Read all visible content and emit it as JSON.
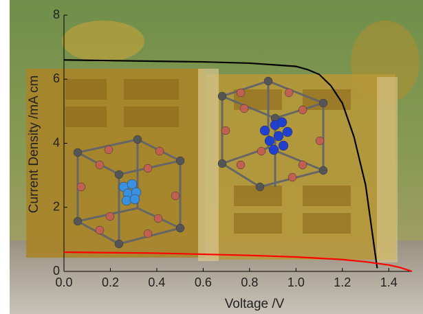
{
  "chart_data": {
    "type": "line",
    "x_label": "Voltage /V",
    "y_label": "Current Density /mA cm",
    "xlim": [
      0,
      1.5
    ],
    "xticks": [
      {
        "value": 0,
        "label": "0.0"
      },
      0.2,
      0.4,
      0.6,
      0.8,
      {
        "value": 1,
        "label": "1.0"
      },
      1.2,
      1.4
    ],
    "ylim": [
      0,
      8
    ],
    "yticks": [
      0,
      2,
      4,
      6,
      8
    ],
    "series": [
      {
        "color": "#000000",
        "x": [
          0,
          0.2,
          0.4,
          0.6,
          0.8,
          0.9,
          1.0,
          1.05,
          1.1,
          1.15,
          1.2,
          1.25,
          1.3,
          1.35
        ],
        "values": [
          6.6,
          6.58,
          6.56,
          6.54,
          6.5,
          6.45,
          6.4,
          6.3,
          6.15,
          5.8,
          5.25,
          4.2,
          2.7,
          0.1
        ]
      },
      {
        "color": "#ff0000",
        "x": [
          0,
          0.4,
          0.8,
          1.0,
          1.2,
          1.3,
          1.4,
          1.45,
          1.5
        ],
        "values": [
          0.6,
          0.57,
          0.5,
          0.45,
          0.37,
          0.3,
          0.2,
          0.12,
          0
        ]
      }
    ]
  }
}
